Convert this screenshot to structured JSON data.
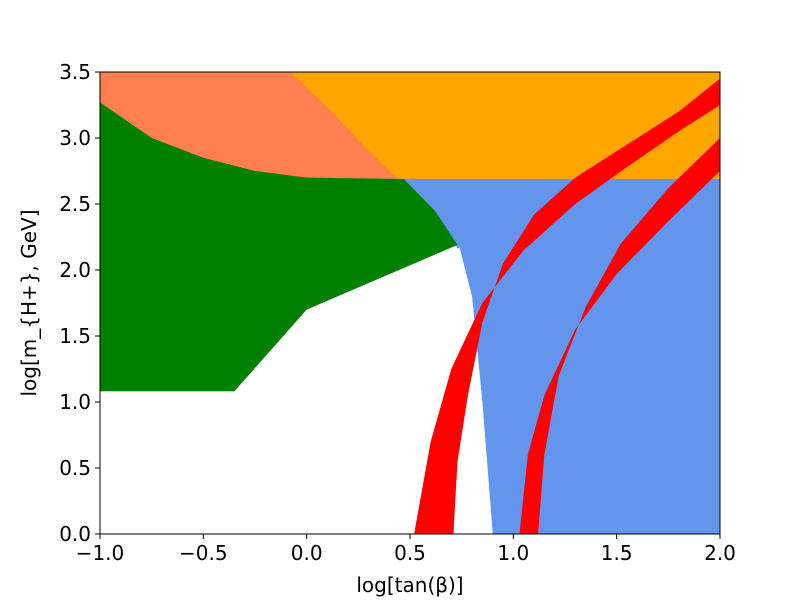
{
  "chart_data": {
    "type": "area",
    "title": "",
    "xlabel": "log[tan(β)]",
    "ylabel": "log[m_{H+}, GeV]",
    "xlim": [
      -1.0,
      2.0
    ],
    "ylim": [
      0.0,
      3.5
    ],
    "grid": false,
    "legend": "none",
    "x_ticks": [
      "−1.0",
      "−0.5",
      "0.0",
      "0.5",
      "1.0",
      "1.5",
      "2.0"
    ],
    "x_tick_values": [
      -1.0,
      -0.5,
      0.0,
      0.5,
      1.0,
      1.5,
      2.0
    ],
    "y_ticks": [
      "0.0",
      "0.5",
      "1.0",
      "1.5",
      "2.0",
      "2.5",
      "3.0",
      "3.5"
    ],
    "y_tick_values": [
      0.0,
      0.5,
      1.0,
      1.5,
      2.0,
      2.5,
      3.0,
      3.5
    ],
    "regions": [
      {
        "color": "#ff7f50",
        "points": [
          [
            -1.0,
            3.5
          ],
          [
            2.0,
            3.5
          ],
          [
            2.0,
            2.69
          ],
          [
            -1.0,
            2.69
          ]
        ]
      },
      {
        "color": "#ffa500",
        "points": [
          [
            -0.08,
            3.5
          ],
          [
            2.0,
            3.5
          ],
          [
            2.0,
            2.69
          ],
          [
            0.44,
            2.69
          ],
          [
            0.3,
            2.9
          ],
          [
            0.12,
            3.2
          ]
        ]
      },
      {
        "color": "#6495ed",
        "points": [
          [
            0.47,
            2.69
          ],
          [
            2.0,
            2.69
          ],
          [
            2.0,
            0.0
          ],
          [
            0.9,
            0.0
          ],
          [
            0.85,
            1.0
          ],
          [
            0.8,
            1.8
          ],
          [
            0.72,
            2.2
          ],
          [
            0.62,
            2.45
          ]
        ]
      },
      {
        "color": "#008000",
        "points": [
          [
            -1.0,
            3.27
          ],
          [
            -0.75,
            3.0
          ],
          [
            -0.5,
            2.85
          ],
          [
            -0.25,
            2.75
          ],
          [
            0.0,
            2.7
          ],
          [
            0.47,
            2.69
          ],
          [
            0.62,
            2.45
          ],
          [
            0.73,
            2.19
          ],
          [
            0.0,
            1.7
          ],
          [
            -0.35,
            1.08
          ],
          [
            -1.0,
            1.08
          ]
        ]
      },
      {
        "color": "#ffffff",
        "points": [
          [
            -1.0,
            1.08
          ],
          [
            -0.35,
            1.08
          ],
          [
            0.0,
            1.6
          ],
          [
            0.74,
            2.17
          ],
          [
            0.8,
            1.8
          ],
          [
            0.85,
            1.0
          ],
          [
            0.9,
            0.0
          ],
          [
            -1.0,
            0.0
          ]
        ]
      },
      {
        "color": "#ff0000",
        "points": [
          [
            0.52,
            0.0
          ],
          [
            0.6,
            0.7
          ],
          [
            0.7,
            1.25
          ],
          [
            0.85,
            1.75
          ],
          [
            1.05,
            2.15
          ],
          [
            1.3,
            2.5
          ],
          [
            1.55,
            2.78
          ],
          [
            1.8,
            3.05
          ],
          [
            2.0,
            3.25
          ],
          [
            2.0,
            3.45
          ],
          [
            1.8,
            3.2
          ],
          [
            1.55,
            2.95
          ],
          [
            1.3,
            2.7
          ],
          [
            1.1,
            2.42
          ],
          [
            0.95,
            2.05
          ],
          [
            0.85,
            1.6
          ],
          [
            0.78,
            1.05
          ],
          [
            0.73,
            0.55
          ],
          [
            0.71,
            0.0
          ]
        ]
      },
      {
        "color": "#ff0000",
        "points": [
          [
            1.03,
            0.0
          ],
          [
            1.07,
            0.6
          ],
          [
            1.15,
            1.05
          ],
          [
            1.3,
            1.55
          ],
          [
            1.5,
            1.97
          ],
          [
            1.75,
            2.37
          ],
          [
            2.0,
            2.75
          ],
          [
            2.0,
            3.0
          ],
          [
            1.75,
            2.62
          ],
          [
            1.52,
            2.2
          ],
          [
            1.35,
            1.72
          ],
          [
            1.22,
            1.2
          ],
          [
            1.15,
            0.6
          ],
          [
            1.12,
            0.0
          ]
        ]
      }
    ]
  }
}
